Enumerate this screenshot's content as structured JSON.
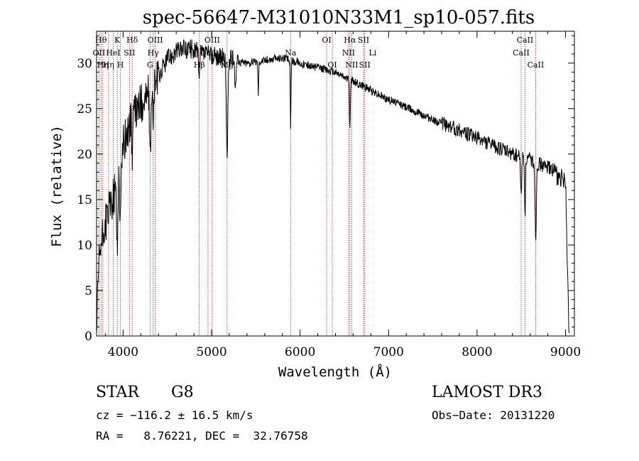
{
  "chart_data": {
    "type": "line",
    "title": "spec-56647-M31010N33M1_sp10-057.fits",
    "xlabel": "Wavelength (Å)",
    "ylabel": "Flux (relative)",
    "xlim": [
      3700,
      9100
    ],
    "ylim": [
      0,
      33.5
    ],
    "xticks": [
      4000,
      5000,
      6000,
      7000,
      8000,
      9000
    ],
    "yticks": [
      0,
      5,
      10,
      15,
      20,
      25,
      30
    ],
    "xtick_labels": [
      "4000",
      "5000",
      "6000",
      "7000",
      "8000",
      "9000"
    ],
    "ytick_labels": [
      "0",
      "5",
      "10",
      "15",
      "20",
      "25",
      "30"
    ],
    "grid": false,
    "series": [
      {
        "name": "flux",
        "continuum_x": [
          3700,
          3730,
          3800,
          3900,
          4000,
          4100,
          4200,
          4300,
          4400,
          4500,
          4600,
          4700,
          4800,
          4900,
          5000,
          5200,
          5400,
          5600,
          5800,
          6000,
          6200,
          6400,
          6600,
          6800,
          7000,
          7200,
          7400,
          7600,
          7800,
          8000,
          8200,
          8400,
          8600,
          8800,
          9000,
          9040
        ],
        "continuum_y": [
          0.5,
          8.5,
          12.5,
          15.5,
          21.0,
          24.0,
          25.5,
          27.0,
          28.5,
          30.5,
          31.3,
          31.6,
          31.5,
          31.0,
          30.8,
          30.4,
          30.0,
          30.3,
          30.6,
          30.0,
          29.5,
          29.0,
          28.0,
          27.0,
          26.0,
          25.2,
          24.2,
          23.4,
          22.6,
          21.8,
          20.8,
          20.0,
          19.4,
          18.5,
          17.8,
          0.5
        ],
        "absorption_features": [
          {
            "center": 3934,
            "depth": 8.0,
            "width": 10
          },
          {
            "center": 3969,
            "depth": 7.0,
            "width": 10
          },
          {
            "center": 4102,
            "depth": 4.0,
            "width": 8
          },
          {
            "center": 4305,
            "depth": 8.5,
            "width": 10
          },
          {
            "center": 4340,
            "depth": 5.0,
            "width": 8
          },
          {
            "center": 4861,
            "depth": 3.5,
            "width": 8
          },
          {
            "center": 5175,
            "depth": 11.0,
            "width": 12
          },
          {
            "center": 5270,
            "depth": 3.0,
            "width": 8
          },
          {
            "center": 5528,
            "depth": 3.5,
            "width": 6
          },
          {
            "center": 5893,
            "depth": 7.5,
            "width": 6
          },
          {
            "center": 6563,
            "depth": 5.0,
            "width": 8
          },
          {
            "center": 8498,
            "depth": 4.5,
            "width": 8
          },
          {
            "center": 8542,
            "depth": 6.0,
            "width": 8
          },
          {
            "center": 8662,
            "depth": 8.5,
            "width": 10
          }
        ]
      }
    ],
    "line_markers": [
      {
        "wavelength": 3727,
        "labels": [
          "OII"
        ],
        "row": 1
      },
      {
        "wavelength": 3750,
        "labels": [
          "Hθ"
        ],
        "row": 0
      },
      {
        "wavelength": 3771,
        "labels": [
          "Hη"
        ],
        "row": 2
      },
      {
        "wavelength": 3835,
        "labels": [
          "Hη"
        ],
        "row": 2
      },
      {
        "wavelength": 3889,
        "labels": [
          "HeI"
        ],
        "row": 1
      },
      {
        "wavelength": 3934,
        "labels": [
          "K"
        ],
        "row": 0
      },
      {
        "wavelength": 3969,
        "labels": [
          "H"
        ],
        "row": 2
      },
      {
        "wavelength": 4072,
        "labels": [
          "SII"
        ],
        "row": 1
      },
      {
        "wavelength": 4102,
        "labels": [
          "Hδ"
        ],
        "row": 0
      },
      {
        "wavelength": 4305,
        "labels": [
          "G"
        ],
        "row": 2
      },
      {
        "wavelength": 4340,
        "labels": [
          "Hγ"
        ],
        "row": 1
      },
      {
        "wavelength": 4363,
        "labels": [
          "OIII"
        ],
        "row": 0
      },
      {
        "wavelength": 4861,
        "labels": [
          "Hβ"
        ],
        "row": 2
      },
      {
        "wavelength": 4959,
        "labels": [
          "OIII"
        ],
        "row": 1
      },
      {
        "wavelength": 5007,
        "labels": [
          "OIII"
        ],
        "row": 0
      },
      {
        "wavelength": 5175,
        "labels": [
          "Mg"
        ],
        "row": 2
      },
      {
        "wavelength": 5893,
        "labels": [
          "Na"
        ],
        "row": 1
      },
      {
        "wavelength": 6300,
        "labels": [
          "OI"
        ],
        "row": 0
      },
      {
        "wavelength": 6364,
        "labels": [
          "OI"
        ],
        "row": 2
      },
      {
        "wavelength": 6548,
        "labels": [
          "NII"
        ],
        "row": 1
      },
      {
        "wavelength": 6563,
        "labels": [
          "Hα"
        ],
        "row": 0
      },
      {
        "wavelength": 6584,
        "labels": [
          "NII"
        ],
        "row": 2
      },
      {
        "wavelength": 6717,
        "labels": [
          "SII"
        ],
        "row": 0
      },
      {
        "wavelength": 6731,
        "labels": [
          "SII"
        ],
        "row": 2
      },
      {
        "wavelength": 8498,
        "labels": [
          "CaII"
        ],
        "row": 1
      },
      {
        "wavelength": 8542,
        "labels": [
          "CaII"
        ],
        "row": 0
      },
      {
        "wavelength": 8662,
        "labels": [
          "CaII"
        ],
        "row": 2
      }
    ],
    "extra_labels": [
      "Li"
    ]
  },
  "annotations": {
    "object_class": "STAR",
    "subclass": "G8",
    "survey": "LAMOST DR3",
    "cz": "cz = −116.2 ± 16.5 km/s",
    "radec": "RA =   8.76221, DEC =  32.76758",
    "obs_date": "Obs−Date: 20131220"
  },
  "colors": {
    "line": "#000000",
    "marker": "#b22222",
    "background": "#ffffff"
  }
}
